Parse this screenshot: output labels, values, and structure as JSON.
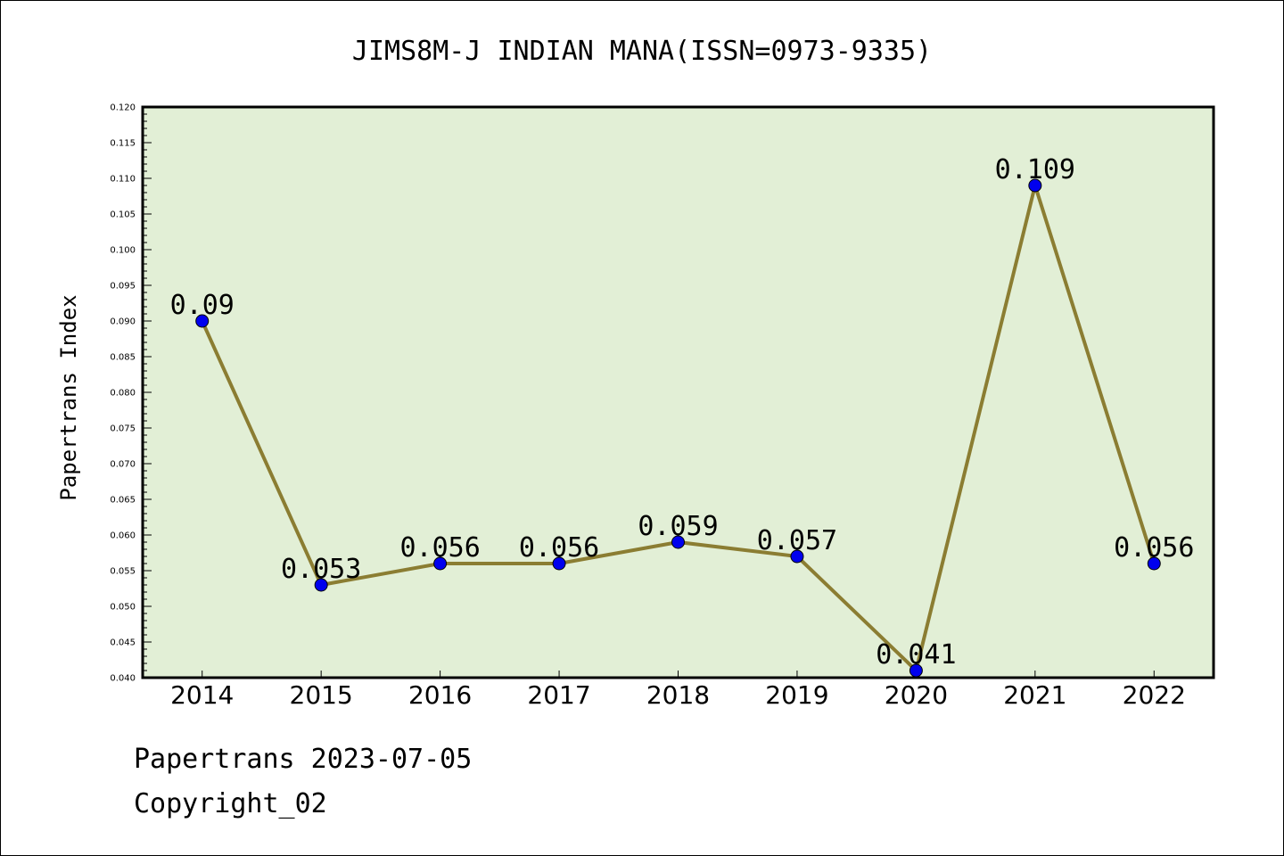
{
  "chart_data": {
    "type": "line",
    "title": "JIMS8M-J INDIAN MANA(ISSN=0973-9335)",
    "xlabel": "",
    "ylabel": "Papertrans Index",
    "categories": [
      "2014",
      "2015",
      "2016",
      "2017",
      "2018",
      "2019",
      "2020",
      "2021",
      "2022"
    ],
    "values": [
      0.09,
      0.053,
      0.056,
      0.056,
      0.059,
      0.057,
      0.041,
      0.109,
      0.056
    ],
    "data_labels": [
      "0.09",
      "0.053",
      "0.056",
      "0.056",
      "0.059",
      "0.057",
      "0.041",
      "0.109",
      "0.056"
    ],
    "ylim": [
      0.04,
      0.12
    ],
    "yticks": [
      "0.040",
      "0.045",
      "0.050",
      "0.055",
      "0.060",
      "0.065",
      "0.070",
      "0.075",
      "0.080",
      "0.085",
      "0.090",
      "0.095",
      "0.100",
      "0.105",
      "0.110",
      "0.115",
      "0.120"
    ],
    "grid": false,
    "legend": "none",
    "colors": {
      "plot_bg": "#e2efd6",
      "line": "#8b7d32",
      "marker": "#0000ee",
      "axis": "#000000"
    }
  },
  "footer": {
    "date_text": "Papertrans 2023-07-05",
    "copyright_text": "Copyright_02"
  }
}
